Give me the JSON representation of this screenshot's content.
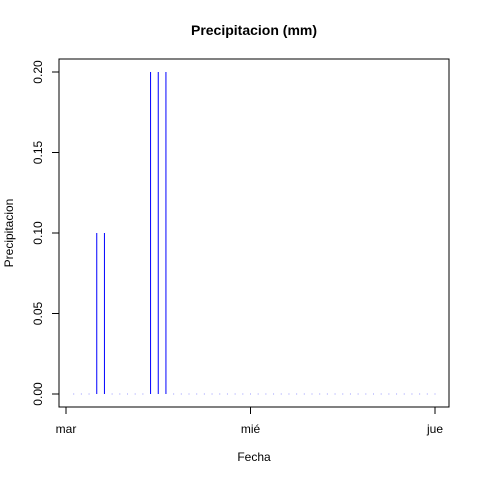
{
  "chart_data": {
    "type": "bar",
    "title": "Precipitacion (mm)",
    "xlabel": "Fecha",
    "ylabel": "Precipitacion",
    "ylim": [
      0,
      0.2
    ],
    "y_ticks": [
      "0.00",
      "0.05",
      "0.10",
      "0.15",
      "0.20"
    ],
    "x_ticks": [
      "mar",
      "mié",
      "jue"
    ],
    "series": [
      {
        "values": [
          0,
          0,
          0,
          0.1,
          0.1,
          0,
          0,
          0,
          0,
          0,
          0.2,
          0.2,
          0.2,
          0,
          0,
          0,
          0,
          0,
          0,
          0,
          0,
          0,
          0,
          0,
          0,
          0,
          0,
          0,
          0,
          0,
          0,
          0,
          0,
          0,
          0,
          0,
          0,
          0,
          0,
          0,
          0,
          0,
          0,
          0,
          0,
          0,
          0,
          0
        ]
      }
    ],
    "colors": {
      "bar": "#0000ff",
      "axis": "#000000"
    },
    "grid": false
  }
}
